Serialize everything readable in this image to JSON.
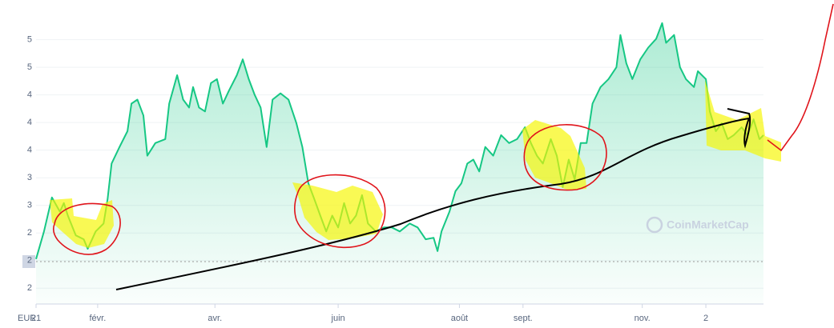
{
  "chart_data": {
    "type": "area",
    "y_unit": "EUR",
    "watermark": "CoinMarketCap",
    "color": "#16c784",
    "x": [
      0,
      4,
      8,
      12,
      14,
      16,
      20,
      24,
      26,
      30,
      34,
      36,
      38,
      42,
      46,
      48,
      51,
      54,
      56,
      60,
      65,
      67,
      71,
      74,
      77,
      79,
      82,
      85,
      88,
      91,
      94,
      97,
      101,
      104,
      107,
      110,
      113,
      116,
      119,
      123,
      127,
      131,
      134,
      137,
      140,
      143,
      146,
      149,
      152,
      155,
      158,
      161,
      164,
      167,
      171,
      175,
      179,
      183,
      188,
      192,
      196,
      200,
      202,
      204,
      208,
      211,
      214,
      217,
      220,
      223,
      226,
      230,
      234,
      238,
      242,
      246,
      249,
      252,
      255,
      259,
      262,
      265,
      268,
      271,
      274,
      277,
      280,
      284,
      288,
      292,
      294,
      297,
      300,
      304,
      308,
      312,
      315,
      317,
      321,
      324,
      327,
      331,
      333,
      337,
      339,
      342,
      345,
      348,
      351,
      355,
      358,
      361,
      364,
      366
    ],
    "values": [
      2.12,
      2.47,
      2.9,
      2.72,
      2.83,
      2.67,
      2.42,
      2.37,
      2.25,
      2.47,
      2.57,
      2.88,
      3.33,
      3.54,
      3.74,
      4.09,
      4.14,
      3.94,
      3.43,
      3.59,
      3.64,
      4.09,
      4.45,
      4.14,
      4.04,
      4.3,
      4.04,
      3.99,
      4.35,
      4.4,
      4.09,
      4.25,
      4.45,
      4.65,
      4.4,
      4.2,
      4.04,
      3.54,
      4.14,
      4.22,
      4.14,
      3.84,
      3.54,
      3.08,
      2.88,
      2.67,
      2.47,
      2.67,
      2.52,
      2.83,
      2.57,
      2.67,
      2.93,
      2.57,
      2.47,
      2.52,
      2.52,
      2.47,
      2.57,
      2.52,
      2.37,
      2.39,
      2.22,
      2.47,
      2.72,
      2.98,
      3.08,
      3.33,
      3.38,
      3.23,
      3.54,
      3.43,
      3.69,
      3.59,
      3.64,
      3.79,
      3.59,
      3.43,
      3.33,
      3.64,
      3.43,
      3.03,
      3.38,
      3.13,
      3.59,
      3.59,
      4.09,
      4.3,
      4.4,
      4.55,
      4.96,
      4.6,
      4.4,
      4.65,
      4.8,
      4.91,
      5.11,
      4.86,
      4.96,
      4.55,
      4.4,
      4.3,
      4.5,
      4.4,
      3.99,
      3.74,
      3.84,
      3.64,
      3.69,
      3.79,
      3.69,
      3.89,
      3.64,
      3.69
    ],
    "xlim": [
      0,
      366
    ],
    "xticks": [
      {
        "value": 0,
        "label": "21"
      },
      {
        "value": 31,
        "label": "févr."
      },
      {
        "value": 90,
        "label": "avr."
      },
      {
        "value": 152,
        "label": "juin"
      },
      {
        "value": 213,
        "label": "août"
      },
      {
        "value": 245,
        "label": "sept."
      },
      {
        "value": 305,
        "label": "nov."
      },
      {
        "value": 337,
        "label": "2"
      }
    ],
    "ylim": [
      1.55,
      5.2
    ],
    "yticks": [
      {
        "value": 1.75,
        "label": "2"
      },
      {
        "value": 2.1,
        "label": "2"
      },
      {
        "value": 2.45,
        "label": "2"
      },
      {
        "value": 2.8,
        "label": "3"
      },
      {
        "value": 3.15,
        "label": "3"
      },
      {
        "value": 3.5,
        "label": "4"
      },
      {
        "value": 3.85,
        "label": "4"
      },
      {
        "value": 4.2,
        "label": "4"
      },
      {
        "value": 4.55,
        "label": "5"
      },
      {
        "value": 4.9,
        "label": "5"
      }
    ],
    "grid": true
  }
}
